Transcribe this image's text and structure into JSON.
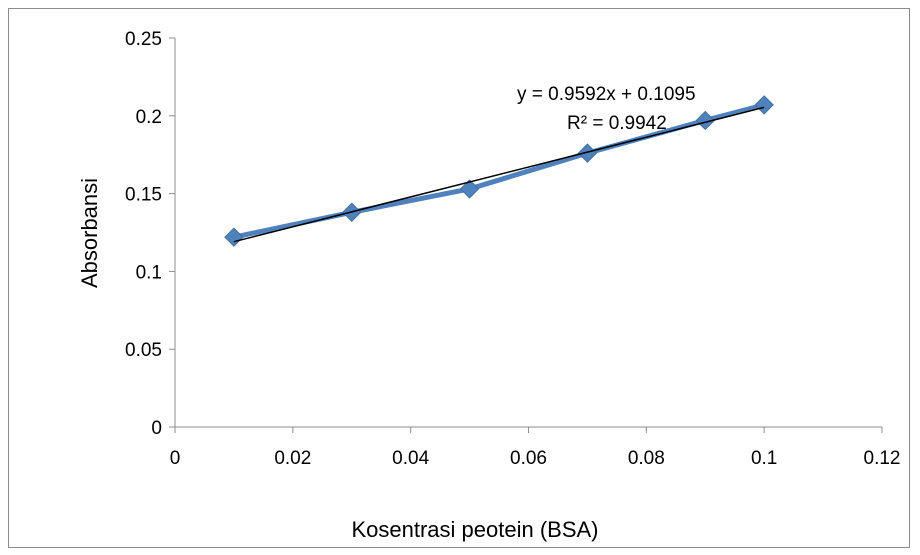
{
  "chart_data": {
    "type": "scatter",
    "title": "",
    "xlabel": "Kosentrasi peotein (BSA)",
    "ylabel": "Absorbansi",
    "xlim": [
      0,
      0.12
    ],
    "ylim": [
      0,
      0.25
    ],
    "xticks": [
      0,
      0.02,
      0.04,
      0.06,
      0.08,
      0.1,
      0.12
    ],
    "yticks": [
      0,
      0.05,
      0.1,
      0.15,
      0.2,
      0.25
    ],
    "xtick_labels": [
      "0",
      "0.02",
      "0.04",
      "0.06",
      "0.08",
      "0.1",
      "0.12"
    ],
    "ytick_labels": [
      "0",
      "0.05",
      "0.1",
      "0.15",
      "0.2",
      "0.25"
    ],
    "grid": false,
    "legend": "none",
    "series": [
      {
        "x": [
          0.01,
          0.03,
          0.05,
          0.07,
          0.09,
          0.1
        ],
        "y": [
          0.122,
          0.138,
          0.153,
          0.176,
          0.197,
          0.207
        ],
        "color": "#4f81bd",
        "marker": "diamond",
        "line": "straight"
      }
    ],
    "trendline": {
      "type": "linear",
      "slope": 0.9592,
      "intercept": 0.1095,
      "r_squared": 0.9942,
      "color": "#000000",
      "x_range": [
        0.01,
        0.1
      ]
    },
    "annotations": {
      "equation": "y = 0.9592x + 0.1095",
      "r2": "R² = 0.9942"
    }
  }
}
